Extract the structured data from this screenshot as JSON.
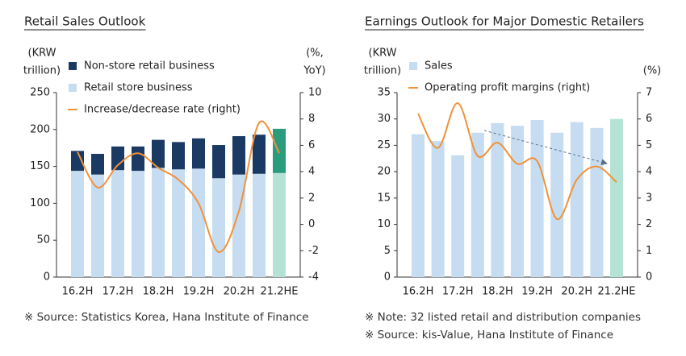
{
  "chart_data": [
    {
      "type": "bar",
      "stacked": true,
      "title": "Retail Sales Outlook",
      "y_label": [
        "(KRW",
        "trillion)"
      ],
      "y2_label": [
        "(%,",
        "YoY)"
      ],
      "categories": [
        "16.2H",
        null,
        "17.2H",
        null,
        "18.2H",
        null,
        "19.2H",
        null,
        "20.2H",
        null,
        "21.2HE"
      ],
      "ylim": [
        0,
        250
      ],
      "yticks": [
        0,
        50,
        100,
        150,
        200,
        250
      ],
      "y2lim": [
        -4,
        10
      ],
      "y2ticks": [
        -4,
        -2,
        0,
        2,
        4,
        6,
        8,
        10
      ],
      "series": [
        {
          "name": "Non-store retail business",
          "type": "bar",
          "color": "#1b3a63",
          "colors": [
            "#1b3a63",
            "#1b3a63",
            "#1b3a63",
            "#1b3a63",
            "#1b3a63",
            "#1b3a63",
            "#1b3a63",
            "#1b3a63",
            "#1b3a63",
            "#1b3a63",
            "#2a9c7e"
          ],
          "values": [
            27,
            28,
            32,
            33,
            38,
            37,
            41,
            45,
            52,
            53,
            60
          ]
        },
        {
          "name": "Retail store business",
          "type": "bar",
          "color": "#c6dcf0",
          "colors": [
            "#c6dcf0",
            "#c6dcf0",
            "#c6dcf0",
            "#c6dcf0",
            "#c6dcf0",
            "#c6dcf0",
            "#c6dcf0",
            "#c6dcf0",
            "#c6dcf0",
            "#c6dcf0",
            "#b4e3d6"
          ],
          "values": [
            144,
            139,
            145,
            144,
            148,
            146,
            147,
            134,
            139,
            140,
            141
          ]
        },
        {
          "name": "Increase/decrease rate (right)",
          "type": "line",
          "axis": "y2",
          "color": "#f0923a",
          "values": [
            5.5,
            2.8,
            4.5,
            5.4,
            4.3,
            3.4,
            1.6,
            -2.1,
            1.0,
            7.7,
            5.4
          ]
        }
      ],
      "notes": [
        "※ Source: Statistics Korea, Hana Institute of Finance"
      ]
    },
    {
      "type": "bar",
      "stacked": false,
      "title": "Earnings Outlook for Major Domestic Retailers",
      "y_label": [
        "(KRW",
        "trillion)"
      ],
      "y2_label": [
        "(%)"
      ],
      "categories": [
        "16.2H",
        null,
        "17.2H",
        null,
        "18.2H",
        null,
        "19.2H",
        null,
        "20.2H",
        null,
        "21.2HE"
      ],
      "ylim": [
        0,
        35
      ],
      "yticks": [
        0,
        5,
        10,
        15,
        20,
        25,
        30,
        35
      ],
      "y2lim": [
        0,
        7
      ],
      "y2ticks": [
        0,
        1,
        2,
        3,
        4,
        5,
        6,
        7
      ],
      "series": [
        {
          "name": "Sales",
          "type": "bar",
          "color": "#c6dcf0",
          "colors": [
            "#c6dcf0",
            "#c6dcf0",
            "#c6dcf0",
            "#c6dcf0",
            "#c6dcf0",
            "#c6dcf0",
            "#c6dcf0",
            "#c6dcf0",
            "#c6dcf0",
            "#c6dcf0",
            "#b4e3d6"
          ],
          "values": [
            27.1,
            25.8,
            23.1,
            27.4,
            29.2,
            28.7,
            29.8,
            27.4,
            29.4,
            28.3,
            30.0
          ]
        },
        {
          "name": "Operating profit margins (right)",
          "type": "line",
          "axis": "y2",
          "color": "#f0923a",
          "values": [
            6.2,
            4.9,
            6.6,
            4.6,
            5.1,
            4.3,
            4.4,
            2.2,
            3.7,
            4.2,
            3.6
          ]
        }
      ],
      "notes": [
        "※ Note: 32 listed retail and distribution companies",
        "※ Source: kis-Value, Hana Institute of Finance"
      ]
    }
  ]
}
